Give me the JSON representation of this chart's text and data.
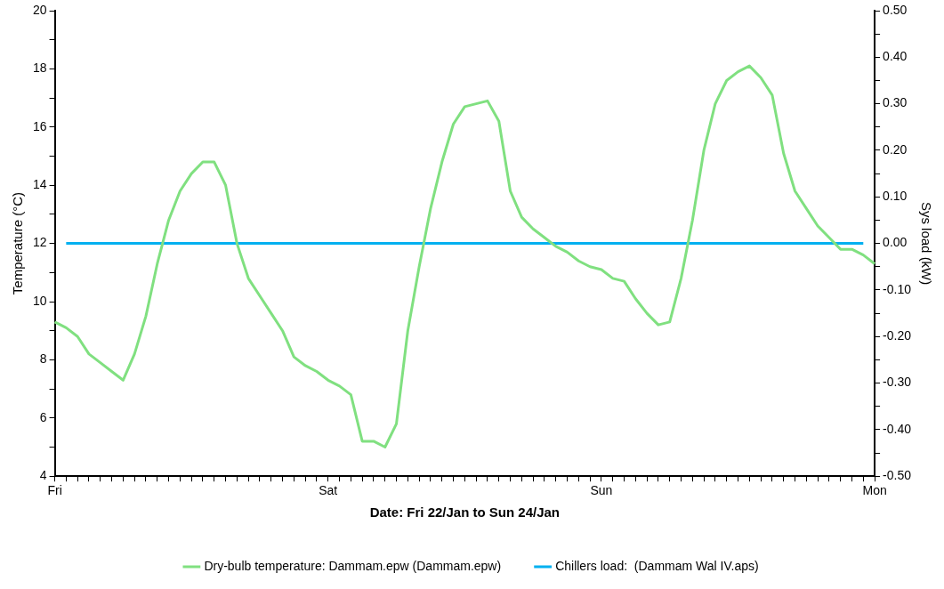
{
  "chart_data": {
    "type": "line",
    "xlabel": "Date: Fri 22/Jan to Sun 24/Jan",
    "ylabel": "Temperature (°C)",
    "y2label": "Sys load (kW)",
    "categories": [
      "Fri",
      null,
      null,
      null,
      null,
      null,
      null,
      null,
      null,
      null,
      null,
      null,
      null,
      null,
      null,
      null,
      null,
      null,
      null,
      null,
      null,
      null,
      null,
      null,
      "Sat",
      null,
      null,
      null,
      null,
      null,
      null,
      null,
      null,
      null,
      null,
      null,
      null,
      null,
      null,
      null,
      null,
      null,
      null,
      null,
      null,
      null,
      null,
      null,
      "Sun",
      null,
      null,
      null,
      null,
      null,
      null,
      null,
      null,
      null,
      null,
      null,
      null,
      null,
      null,
      null,
      null,
      null,
      null,
      null,
      null,
      null,
      null,
      null,
      "Mon"
    ],
    "ylim": [
      4,
      20
    ],
    "yticks": [
      4,
      {
        "value": 5,
        "label": null
      },
      6,
      {
        "value": 7,
        "label": null
      },
      8,
      {
        "value": 9,
        "label": null
      },
      10,
      {
        "value": 11,
        "label": null
      },
      12,
      {
        "value": 13,
        "label": null
      },
      14,
      {
        "value": 15,
        "label": null
      },
      16,
      {
        "value": 17,
        "label": null
      },
      18,
      {
        "value": 19,
        "label": null
      },
      20
    ],
    "y2lim": [
      -0.5,
      0.5
    ],
    "y2ticks": [
      {
        "value": -0.5,
        "label": "-0.50"
      },
      {
        "value": -0.45,
        "label": null
      },
      {
        "value": -0.4,
        "label": "-0.40"
      },
      {
        "value": -0.35,
        "label": null
      },
      {
        "value": -0.3,
        "label": "-0.30"
      },
      {
        "value": -0.25,
        "label": null
      },
      {
        "value": -0.2,
        "label": "-0.20"
      },
      {
        "value": -0.15,
        "label": null
      },
      {
        "value": -0.1,
        "label": "-0.10"
      },
      {
        "value": -0.05,
        "label": null
      },
      {
        "value": 0,
        "label": "0.00"
      },
      {
        "value": 0.05,
        "label": null
      },
      {
        "value": 0.1,
        "label": "0.10"
      },
      {
        "value": 0.15,
        "label": null
      },
      {
        "value": 0.2,
        "label": "0.20"
      },
      {
        "value": 0.25,
        "label": null
      },
      {
        "value": 0.3,
        "label": "0.30"
      },
      {
        "value": 0.35,
        "label": null
      },
      {
        "value": 0.4,
        "label": "0.40"
      },
      {
        "value": 0.45,
        "label": null
      },
      {
        "value": 0.5,
        "label": "0.50"
      }
    ],
    "legend": "bottom",
    "marker": "none",
    "line_style": "solid",
    "series": [
      {
        "name": "Dry-bulb temperature: Dammam.epw (Dammam.epw)",
        "color": "#80e080",
        "values": [
          9.3,
          9.1,
          8.8,
          8.2,
          7.9,
          7.6,
          7.3,
          8.2,
          9.5,
          11.3,
          12.8,
          13.8,
          14.4,
          14.8,
          14.8,
          14.0,
          12.0,
          10.8,
          10.2,
          9.6,
          9.0,
          8.1,
          7.8,
          7.6,
          7.3,
          7.1,
          6.8,
          5.2,
          5.2,
          5.0,
          5.8,
          9.0,
          11.2,
          13.2,
          14.8,
          16.1,
          16.7,
          16.8,
          16.9,
          16.2,
          13.8,
          12.9,
          12.5,
          12.2,
          11.9,
          11.7,
          11.4,
          11.2,
          11.1,
          10.8,
          10.7,
          10.1,
          9.6,
          9.2,
          9.3,
          10.8,
          12.8,
          15.2,
          16.8,
          17.6,
          17.9,
          18.1,
          17.7,
          17.1,
          15.1,
          13.8,
          13.2,
          12.6,
          12.2,
          11.8,
          11.8,
          11.6,
          11.3
        ]
      },
      {
        "name": "Chillers load:  (Dammam Wal IV.aps)",
        "color": "#00b0f0",
        "axis": "y2",
        "values": [
          null,
          0,
          0,
          0,
          0,
          0,
          0,
          0,
          0,
          0,
          0,
          0,
          0,
          0,
          0,
          0,
          0,
          0,
          0,
          0,
          0,
          0,
          0,
          0,
          0,
          0,
          0,
          0,
          0,
          0,
          0,
          0,
          0,
          0,
          0,
          0,
          0,
          0,
          0,
          0,
          0,
          0,
          0,
          0,
          0,
          0,
          0,
          0,
          0,
          0,
          0,
          0,
          0,
          0,
          0,
          0,
          0,
          0,
          0,
          0,
          0,
          0,
          0,
          0,
          0,
          0,
          0,
          0,
          0,
          0,
          0,
          0,
          null
        ]
      }
    ]
  }
}
